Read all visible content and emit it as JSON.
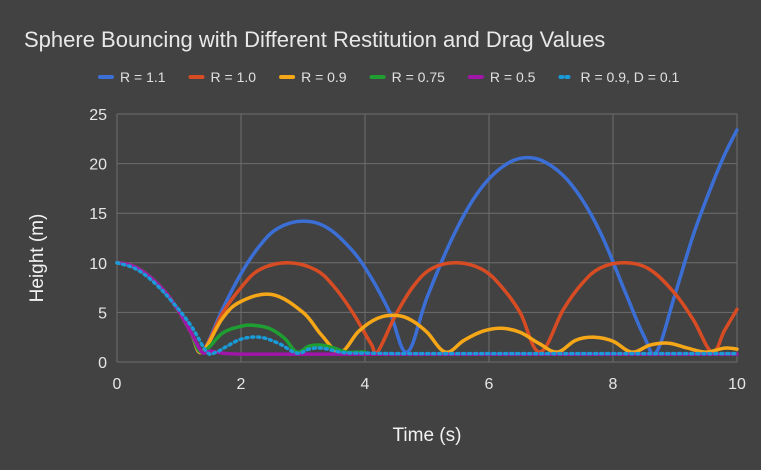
{
  "chart_data": {
    "type": "line",
    "title": "Sphere Bouncing with Different Restitution and Drag Values",
    "xlabel": "Time (s)",
    "ylabel": "Height (m)",
    "xlim": [
      0,
      10
    ],
    "ylim": [
      0,
      25
    ],
    "x_ticks": [
      "0",
      "2",
      "4",
      "6",
      "8",
      "10"
    ],
    "y_ticks": [
      "0",
      "5",
      "10",
      "15",
      "20",
      "25"
    ],
    "grid": true,
    "legend_position": "top",
    "series": [
      {
        "name": "R = 1.1",
        "color": "#3b6fd6",
        "dashed": false,
        "x": [
          0,
          0.2,
          0.4,
          0.6,
          0.8,
          1.0,
          1.2,
          1.37,
          1.7,
          2.0,
          2.3,
          2.6,
          3.0,
          3.4,
          3.8,
          4.1,
          4.4,
          4.68,
          5.0,
          5.4,
          5.8,
          6.2,
          6.6,
          7.0,
          7.4,
          7.8,
          8.2,
          8.5,
          8.7,
          9.0,
          9.3,
          9.6,
          9.8,
          10.0
        ],
        "y": [
          10.0,
          9.8,
          9.2,
          8.2,
          6.9,
          5.1,
          2.9,
          1.0,
          5.3,
          8.9,
          11.7,
          13.5,
          14.2,
          13.5,
          11.2,
          8.5,
          5.0,
          1.0,
          6.5,
          12.4,
          16.9,
          19.6,
          20.6,
          19.8,
          17.3,
          13.0,
          7.0,
          2.6,
          1.0,
          6.8,
          12.9,
          17.9,
          20.9,
          23.4
        ]
      },
      {
        "name": "R = 1.0",
        "color": "#d84c24",
        "dashed": false,
        "x": [
          0,
          0.2,
          0.4,
          0.6,
          0.8,
          1.0,
          1.2,
          1.37,
          1.7,
          2.0,
          2.3,
          2.75,
          3.2,
          3.5,
          3.8,
          4.1,
          4.2,
          4.5,
          4.8,
          5.1,
          5.5,
          5.9,
          6.2,
          6.5,
          6.82,
          7.2,
          7.5,
          7.8,
          8.2,
          8.6,
          9.0,
          9.3,
          9.6,
          9.8,
          10.0
        ],
        "y": [
          10.0,
          9.8,
          9.2,
          8.2,
          6.9,
          5.1,
          2.9,
          1.0,
          4.9,
          7.5,
          9.3,
          10.0,
          9.3,
          7.6,
          5.0,
          1.8,
          1.0,
          4.8,
          7.8,
          9.5,
          10.0,
          9.3,
          7.6,
          5.0,
          1.0,
          5.3,
          7.9,
          9.5,
          10.0,
          9.3,
          6.9,
          4.2,
          1.0,
          3.2,
          5.3
        ]
      },
      {
        "name": "R = 0.9",
        "color": "#f5a718",
        "dashed": false,
        "x": [
          0,
          0.2,
          0.4,
          0.6,
          0.8,
          1.0,
          1.2,
          1.37,
          1.7,
          2.0,
          2.5,
          3.0,
          3.3,
          3.6,
          3.9,
          4.2,
          4.5,
          4.75,
          5.0,
          5.3,
          5.6,
          5.9,
          6.2,
          6.5,
          6.8,
          7.1,
          7.4,
          7.7,
          8.0,
          8.3,
          8.6,
          8.9,
          9.2,
          9.5,
          9.8,
          10.0
        ],
        "y": [
          10.0,
          9.8,
          9.2,
          8.2,
          6.9,
          5.1,
          2.9,
          1.0,
          4.4,
          6.1,
          6.8,
          5.0,
          2.7,
          1.0,
          3.1,
          4.4,
          4.7,
          4.2,
          3.0,
          1.0,
          2.2,
          3.1,
          3.4,
          3.0,
          1.9,
          1.0,
          2.2,
          2.5,
          2.1,
          1.0,
          1.7,
          1.9,
          1.4,
          1.0,
          1.4,
          1.3
        ]
      },
      {
        "name": "R = 0.75",
        "color": "#1f9e32",
        "dashed": false,
        "x": [
          0,
          0.2,
          0.4,
          0.6,
          0.8,
          1.0,
          1.2,
          1.37,
          1.7,
          2.0,
          2.2,
          2.45,
          2.7,
          2.9,
          3.1,
          3.3,
          3.5,
          3.7,
          3.9,
          4.0
        ],
        "y": [
          10.0,
          9.8,
          9.2,
          8.2,
          6.9,
          5.1,
          2.9,
          1.0,
          2.9,
          3.6,
          3.7,
          3.4,
          2.4,
          1.0,
          1.6,
          1.7,
          1.4,
          1.0,
          1.0,
          1.0
        ]
      },
      {
        "name": "R = 0.5",
        "color": "#a016a8",
        "dashed": false,
        "x": [
          0,
          0.2,
          0.4,
          0.6,
          0.8,
          1.0,
          1.2,
          1.37,
          1.5,
          1.7,
          2.0,
          3.0,
          4.0,
          5.0,
          6.0,
          7.0,
          8.0,
          9.0,
          10.0
        ],
        "y": [
          10.0,
          9.8,
          9.2,
          8.2,
          6.9,
          5.1,
          2.9,
          1.0,
          1.1,
          0.9,
          0.8,
          0.8,
          0.8,
          0.8,
          0.8,
          0.8,
          0.8,
          0.8,
          0.8
        ]
      },
      {
        "name": "R = 0.9, D = 0.1",
        "color": "#1a9bd8",
        "dashed": true,
        "x": [
          0,
          0.3,
          0.6,
          0.9,
          1.2,
          1.45,
          1.6,
          1.75,
          2.0,
          2.3,
          2.6,
          2.9,
          3.1,
          3.3,
          3.6,
          3.8,
          4.0,
          4.5,
          5.0,
          6.0,
          7.0,
          8.0,
          9.0,
          10.0
        ],
        "y": [
          10.0,
          9.4,
          8.0,
          6.0,
          3.6,
          1.0,
          1.0,
          1.5,
          2.3,
          2.5,
          1.9,
          0.9,
          1.3,
          1.4,
          1.0,
          0.9,
          0.9,
          0.85,
          0.85,
          0.85,
          0.85,
          0.85,
          0.85,
          0.85
        ]
      }
    ]
  }
}
